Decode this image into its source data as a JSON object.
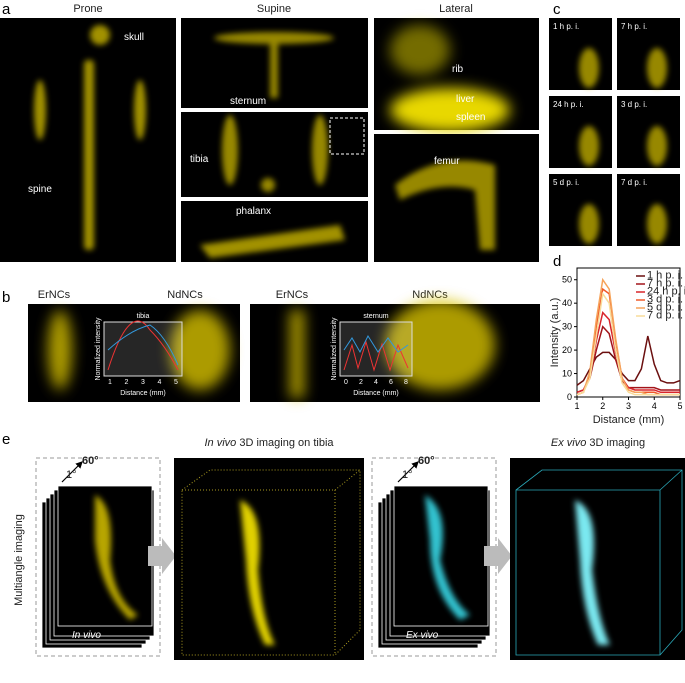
{
  "figure": {
    "panel_labels": [
      "a",
      "b",
      "c",
      "d",
      "e"
    ],
    "a": {
      "columns": [
        "Prone",
        "Supine",
        "Lateral"
      ],
      "labels": [
        "skull",
        "spine",
        "sternum",
        "tibia",
        "phalanx",
        "rib",
        "liver",
        "spleen",
        "femur"
      ]
    },
    "b": {
      "left": {
        "probes": [
          "ErNCs",
          "NdNCs"
        ],
        "site": "tibia",
        "ylabel": "Normalized intensity",
        "xlabel": "Distance (mm)",
        "xticks": [
          "1",
          "2",
          "3",
          "4",
          "5"
        ]
      },
      "right": {
        "probes": [
          "ErNCs",
          "NdNCs"
        ],
        "site": "sternum",
        "ylabel": "Normalized intensity",
        "xlabel": "Distance (mm)",
        "xticks": [
          "0",
          "2",
          "4",
          "6",
          "8"
        ]
      }
    },
    "c": {
      "timepoints": [
        "1 h p. i.",
        "7 h p. i.",
        "24 h p. i.",
        "3 d p. i.",
        "5 d p. i.",
        "7 d p. i."
      ]
    },
    "e": {
      "side_label": "Multiangle imaging",
      "angles": [
        "1°",
        "60°"
      ],
      "stack_labels": [
        "In vivo",
        "Ex vivo"
      ],
      "titles": [
        {
          "parts": [
            "In vivo",
            " 3D imaging on tibia"
          ]
        },
        {
          "parts": [
            "Ex vivo",
            " 3D imaging"
          ]
        }
      ]
    }
  },
  "chart_data": {
    "type": "line",
    "ylabel": "Intensity (a.u.)",
    "xlabel": "Distance (mm)",
    "x": [
      1,
      1.25,
      1.5,
      1.75,
      2,
      2.25,
      2.5,
      2.75,
      3,
      3.25,
      3.5,
      3.75,
      4,
      4.25,
      4.5,
      4.75,
      5
    ],
    "series": [
      {
        "name": "1 h p. i.",
        "color": "#6b0f0f",
        "values": [
          5,
          7,
          12,
          17,
          19,
          19,
          16,
          10,
          7,
          7,
          12,
          26,
          14,
          7,
          6,
          6,
          7
        ]
      },
      {
        "name": "7 h p. i.",
        "color": "#a3141a",
        "values": [
          2,
          3,
          8,
          20,
          30,
          27,
          16,
          7,
          4,
          4,
          4,
          4,
          4,
          3,
          3,
          3,
          3
        ]
      },
      {
        "name": "24 h p. i.",
        "color": "#d9262b",
        "values": [
          2,
          3,
          9,
          24,
          36,
          33,
          19,
          8,
          4,
          3,
          3,
          3,
          3,
          2,
          2,
          2,
          2
        ]
      },
      {
        "name": "3 d p. i.",
        "color": "#f05a2a",
        "values": [
          1,
          2,
          10,
          30,
          46,
          44,
          24,
          8,
          3,
          2,
          2,
          2,
          2,
          1,
          1,
          1,
          1
        ]
      },
      {
        "name": "5 d p. i.",
        "color": "#f6a35a",
        "values": [
          1,
          2,
          11,
          33,
          50,
          46,
          25,
          8,
          3,
          2,
          2,
          1,
          1,
          1,
          1,
          1,
          1
        ]
      },
      {
        "name": "7 d p. i.",
        "color": "#f8dc9a",
        "values": [
          1,
          2,
          8,
          26,
          44,
          40,
          20,
          6,
          2,
          1,
          1,
          1,
          1,
          1,
          1,
          1,
          1
        ]
      }
    ],
    "xlim": [
      1,
      5
    ],
    "xticks": [
      1,
      2,
      3,
      4,
      5
    ],
    "ylim": [
      0,
      55
    ],
    "yticks": [
      0,
      10,
      20,
      30,
      40,
      50
    ],
    "legend": "upper right"
  }
}
